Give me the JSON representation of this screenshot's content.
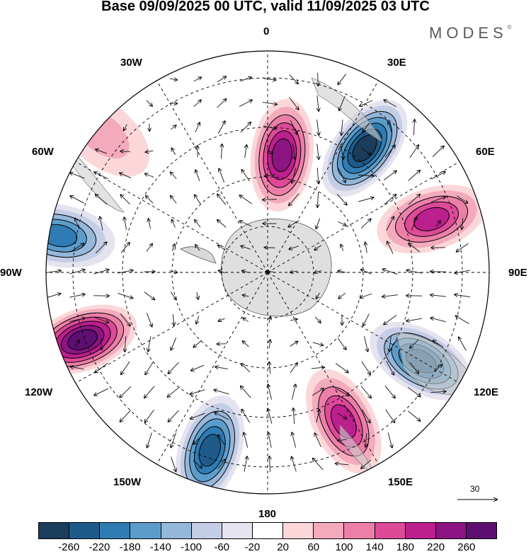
{
  "title": "Base 09/09/2025 00 UTC, valid 11/09/2025 03 UTC",
  "brand": "MODES",
  "brand_mark": "©",
  "longitude_labels": {
    "lon_0": "0",
    "lon_30e": "30E",
    "lon_60e": "60E",
    "lon_90e": "90E",
    "lon_120e": "120E",
    "lon_150e": "150E",
    "lon_180": "180",
    "lon_150w": "150W",
    "lon_120w": "120W",
    "lon_90w": "90W",
    "lon_60w": "60W",
    "lon_30w": "30W"
  },
  "reference_vector": "30",
  "colorbar": {
    "colors": [
      "#1b3d5c",
      "#1f5b8a",
      "#2f7cb4",
      "#5c9ccb",
      "#94b7da",
      "#c4cde6",
      "#e6e3f0",
      "#ffffff",
      "#fbd7d9",
      "#f4aabd",
      "#ec7fa8",
      "#dd4a98",
      "#bc1f8e",
      "#8c1583",
      "#5e0e70"
    ],
    "ticks": [
      "-260",
      "-220",
      "-180",
      "-140",
      "-100",
      "-60",
      "-20",
      "20",
      "60",
      "100",
      "140",
      "180",
      "220",
      "260"
    ]
  },
  "anomaly_centers": [
    {
      "name": "ridge-0",
      "lon": 7,
      "lat_colat": 24,
      "value": 240
    },
    {
      "name": "trough-30e",
      "lon": 38,
      "lat_colat": 32,
      "value": -250
    },
    {
      "name": "ridge-70e",
      "lon": 72,
      "lat_colat": 35,
      "value": 200
    },
    {
      "name": "trough-120e",
      "lon": 120,
      "lat_colat": 36,
      "value": -230
    },
    {
      "name": "ridge-150e",
      "lon": 153,
      "lat_colat": 34,
      "value": 200
    },
    {
      "name": "trough-160w",
      "lon": -162,
      "lat_colat": 38,
      "value": -240
    },
    {
      "name": "ridge-110w",
      "lon": -110,
      "lat_colat": 40,
      "value": 250
    },
    {
      "name": "trough-80w",
      "lon": -80,
      "lat_colat": 43,
      "value": -200
    },
    {
      "name": "ridge-50w",
      "lon": -50,
      "lat_colat": 44,
      "value": 70
    }
  ]
}
